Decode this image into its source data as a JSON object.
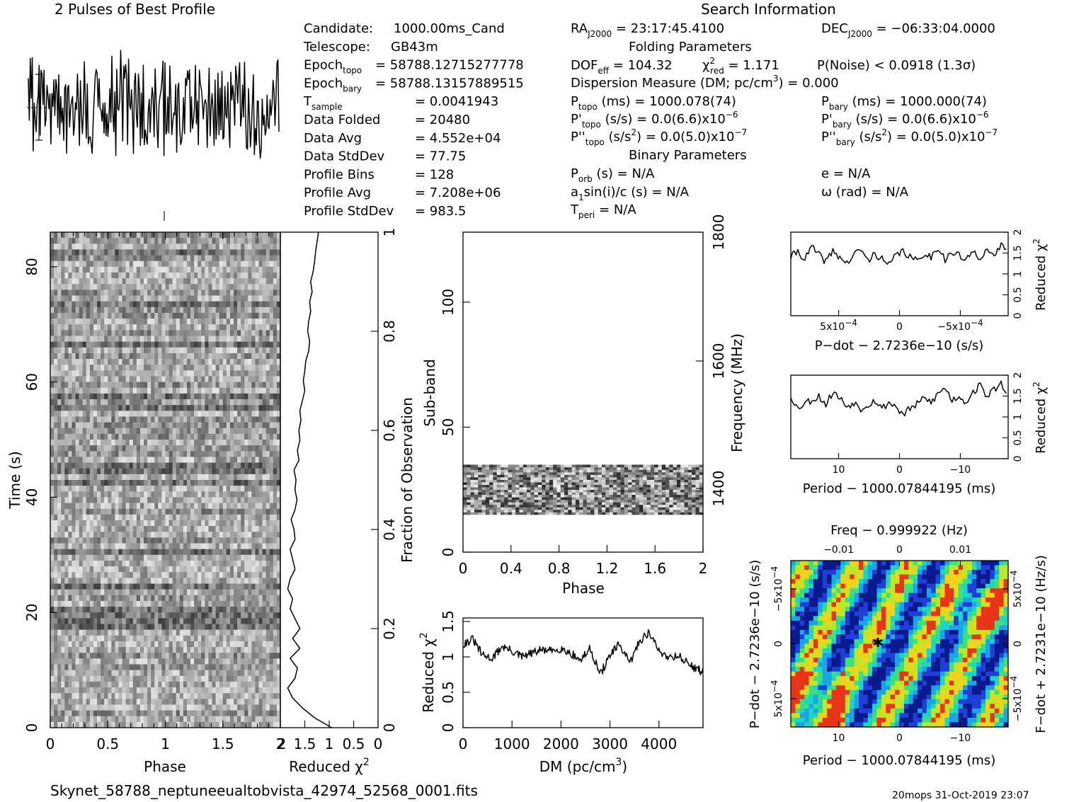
{
  "header": {
    "left_title": "2 Pulses of Best Profile",
    "right_title": "Search Information"
  },
  "footer": {
    "filename": "Skynet_58788_neptuneeualtobvista_42974_52568_0001.fits",
    "stamp": "20mops 31-Oct-2019 23:07"
  },
  "info_rows": [
    {
      "label": "Candidate:",
      "value": "1000.00ms_Cand"
    },
    {
      "label": "Telescope:",
      "value": "GB43m"
    },
    {
      "label": "Epoch",
      "sub": "topo",
      "value": "= 58788.12715277778"
    },
    {
      "label": "Epoch",
      "sub": "bary",
      "value": "= 58788.13157889515"
    },
    {
      "label": "T",
      "sub": "sample",
      "value": "=   0.0041943"
    },
    {
      "label": "Data Folded",
      "value": "=   20480"
    },
    {
      "label": "Data Avg",
      "value": "=   4.552e+04"
    },
    {
      "label": "Data StdDev",
      "value": "=   77.75"
    },
    {
      "label": "Profile Bins",
      "value": "=   128"
    },
    {
      "label": "Profile Avg",
      "value": "=   7.208e+06"
    },
    {
      "label": "Profile StdDev",
      "value": "=   983.5"
    }
  ],
  "search": {
    "ra": "= 23:17:45.4100",
    "dec": "= −06:33:04.0000",
    "folding_title": "Folding Parameters",
    "dof": "= 104.32",
    "chi2red": "= 1.171",
    "pnoise": "P(Noise) < 0.0918   (1.3σ)",
    "dm": "Dispersion Measure (DM; pc/cm",
    "dm_tail": ") = 0.000",
    "ptopo": "(ms) =   1000.078(74)",
    "pbary": "(ms) =   1000.000(74)",
    "pdot_topo": "(s/s) = 0.0(6.6)x10",
    "pdot_bary": "(s/s) = 0.0(6.6)x10",
    "pdot_exp": "−6",
    "pddot_topo": "(s/s",
    "pddot_tail": ") = 0.0(5.0)x10",
    "pddot_exp": "−7",
    "binary_title": "Binary Parameters",
    "porb": "(s) = N/A",
    "asini": "a",
    "asini_tail": "sin(i)/c (s) = N/A",
    "tperi": "= N/A",
    "ecc": "e = N/A",
    "omega": "ω (rad) = N/A"
  },
  "chart_data": [
    {
      "type": "line",
      "id": "profile",
      "title": "2 Pulses of Best Profile",
      "x_range": [
        0,
        2
      ],
      "bins": 128,
      "description_values": "noise-like folded profile, two rotations"
    },
    {
      "type": "heatmap",
      "id": "time-phase",
      "xlabel": "Phase",
      "ylabel": "Time (s)",
      "right_label": "Fraction of Observation",
      "x_ticks": [
        "0",
        "0.5",
        "1",
        "1.5",
        "2"
      ],
      "y_ticks": [
        "0",
        "20",
        "40",
        "60",
        "80"
      ],
      "right_ticks": [
        "0",
        "0.2",
        "0.4",
        "0.6",
        "0.8",
        "1"
      ],
      "xlim": [
        0,
        2
      ],
      "ylim": [
        0,
        86
      ],
      "right_lim": [
        0,
        1
      ]
    },
    {
      "type": "line",
      "id": "time-chi2",
      "xlabel": "Reduced χ",
      "x_ticks": [
        "2",
        "1.5",
        "1",
        "0.5",
        "0"
      ],
      "xlim": [
        2,
        0
      ],
      "points_fraction": [
        0.0,
        0.02,
        0.04,
        0.06,
        0.08,
        0.1,
        0.12,
        0.14,
        0.16,
        0.18,
        0.2,
        0.22,
        0.24,
        0.26,
        0.28,
        0.3,
        0.32,
        0.34,
        0.36,
        0.38,
        0.4,
        0.42,
        0.44,
        0.46,
        0.48,
        0.5,
        0.52,
        0.54,
        0.56,
        0.58,
        0.6,
        0.62,
        0.64,
        0.66,
        0.68,
        0.7,
        0.72,
        0.74,
        0.76,
        0.78,
        0.8,
        0.82,
        0.84,
        0.86,
        0.88,
        0.9,
        0.92,
        0.94,
        0.96,
        0.98,
        1.0
      ],
      "points_chi2": [
        0.95,
        1.3,
        1.55,
        1.75,
        1.85,
        1.7,
        1.65,
        1.8,
        1.6,
        1.75,
        1.6,
        1.7,
        1.8,
        1.75,
        1.85,
        1.8,
        1.7,
        1.75,
        1.8,
        1.7,
        1.72,
        1.78,
        1.7,
        1.66,
        1.7,
        1.68,
        1.72,
        1.62,
        1.65,
        1.6,
        1.62,
        1.58,
        1.6,
        1.55,
        1.5,
        1.53,
        1.5,
        1.48,
        1.42,
        1.4,
        1.44,
        1.42,
        1.38,
        1.4,
        1.35,
        1.38,
        1.33,
        1.3,
        1.28,
        1.25,
        1.22
      ]
    },
    {
      "type": "heatmap",
      "id": "subband-phase",
      "xlabel": "Phase",
      "ylabel": "Sub-band",
      "right_label": "Frequency (MHz)",
      "x_ticks": [
        "0",
        "0.4",
        "0.8",
        "1.2",
        "1.6",
        "2"
      ],
      "y_ticks": [
        "0",
        "50",
        "100"
      ],
      "right_ticks": [
        "1400",
        "1600",
        "1800"
      ],
      "xlim": [
        0,
        2
      ],
      "ylim": [
        0,
        128
      ],
      "data_subband_range": [
        15,
        35
      ]
    },
    {
      "type": "line",
      "id": "dm-chi2",
      "xlabel": "DM (pc/cm",
      "ylabel": "Reduced χ",
      "x_ticks": [
        "0",
        "1000",
        "2000",
        "3000",
        "4000"
      ],
      "y_ticks": [
        "0",
        "0.5",
        "1",
        "1.5"
      ],
      "xlim": [
        0,
        4900
      ],
      "ylim": [
        0,
        1.55
      ],
      "x": [
        0,
        200,
        400,
        600,
        800,
        1000,
        1200,
        1400,
        1600,
        1800,
        2000,
        2200,
        2400,
        2600,
        2800,
        3000,
        3200,
        3400,
        3600,
        3800,
        4000,
        4200,
        4400,
        4600,
        4800,
        4900
      ],
      "y": [
        1.18,
        1.25,
        1.02,
        0.98,
        1.15,
        1.08,
        1.0,
        1.05,
        1.1,
        1.08,
        1.12,
        1.05,
        0.95,
        1.12,
        0.75,
        1.02,
        1.18,
        0.9,
        1.22,
        1.35,
        1.08,
        1.0,
        1.02,
        0.9,
        0.82,
        0.78
      ]
    },
    {
      "type": "line",
      "id": "pdot-chi2",
      "xlabel": "P−dot − 2.7236e−10 (s/s)",
      "ylabel": "Reduced χ",
      "x_ticks": [
        "5x10",
        "0",
        "−5x10"
      ],
      "y_ticks": [
        "0",
        "0.5",
        "1",
        "1.5",
        "2"
      ],
      "ylim": [
        0,
        2
      ],
      "y": [
        1.4,
        1.55,
        1.35,
        1.65,
        1.45,
        1.3,
        1.55,
        1.4,
        1.25,
        1.45,
        1.6,
        1.3,
        1.5,
        1.35,
        1.2,
        1.45,
        1.55,
        1.4,
        1.3,
        1.5,
        1.4,
        1.65,
        1.35,
        1.5,
        1.45,
        1.3,
        1.55,
        1.4,
        1.6,
        1.35,
        1.75,
        1.45
      ]
    },
    {
      "type": "line",
      "id": "period-chi2",
      "xlabel": "Period − 1000.07844195 (ms)",
      "ylabel": "Reduced χ",
      "x_ticks": [
        "10",
        "0",
        "−10"
      ],
      "y_ticks": [
        "0",
        "0.5",
        "1",
        "1.5",
        "2"
      ],
      "ylim": [
        0,
        2
      ],
      "y": [
        1.5,
        1.2,
        1.35,
        1.4,
        1.5,
        1.3,
        1.6,
        1.45,
        1.25,
        1.35,
        1.2,
        1.3,
        1.4,
        1.2,
        1.35,
        1.25,
        1.05,
        1.2,
        1.3,
        1.45,
        1.35,
        1.55,
        1.7,
        1.4,
        1.5,
        1.35,
        1.6,
        1.75,
        1.5,
        1.65,
        1.8,
        1.55
      ]
    },
    {
      "type": "heatmap",
      "id": "p-pdot",
      "top_label": "Freq − 0.999922 (Hz)",
      "top_ticks": [
        "−0.01",
        "0",
        "0.01"
      ],
      "xlabel": "Period − 1000.07844195 (ms)",
      "x_ticks": [
        "10",
        "0",
        "−10"
      ],
      "ylabel": "P−dot − 2.7236e−10 (s/s)",
      "y_ticks": [
        "−5x10",
        "0",
        "5x10"
      ],
      "right_label": "F−dot + 2.7231e−10 (Hz/s)",
      "right_ticks": [
        "5x10",
        "0",
        "−5x10"
      ],
      "tick_exp": "−4",
      "colors": [
        "#0a1a8c",
        "#1f3fd6",
        "#1aa6e6",
        "#1ad6c6",
        "#3ee07a",
        "#b9e82a",
        "#f5d21a",
        "#e8351a",
        "#ffffff"
      ]
    }
  ]
}
